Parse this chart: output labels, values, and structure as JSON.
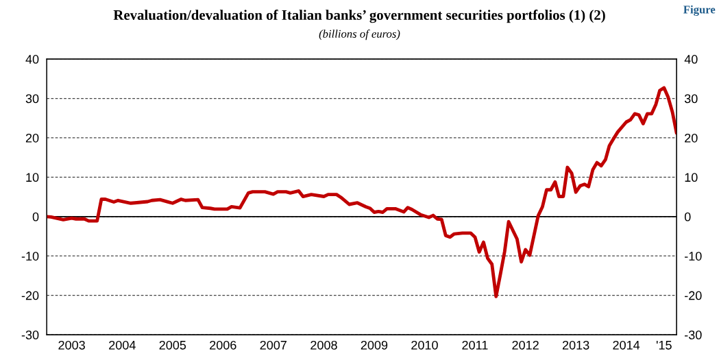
{
  "chart_data": {
    "type": "line",
    "title": "Revaluation/devaluation of Italian banks’ government securities portfolios (1) (2)",
    "subtitle": "(billions of euros)",
    "annotations": [
      "Figure"
    ],
    "x": [
      "2003-01",
      "2003-02",
      "2003-05",
      "2003-07",
      "2003-08",
      "2003-10",
      "2003-11",
      "2004-01",
      "2004-02",
      "2004-03",
      "2004-05",
      "2004-06",
      "2004-09",
      "2004-10",
      "2005-01",
      "2005-02",
      "2005-04",
      "2005-06",
      "2005-07",
      "2005-09",
      "2005-10",
      "2006-01",
      "2006-02",
      "2006-04",
      "2006-05",
      "2006-08",
      "2006-09",
      "2006-11",
      "2007-01",
      "2007-02",
      "2007-05",
      "2007-07",
      "2007-08",
      "2007-10",
      "2007-11",
      "2008-01",
      "2008-02",
      "2008-04",
      "2008-07",
      "2008-08",
      "2008-10",
      "2008-11",
      "2009-01",
      "2009-03",
      "2009-05",
      "2009-06",
      "2009-07",
      "2009-08",
      "2009-09",
      "2009-10",
      "2009-12",
      "2010-02",
      "2010-03",
      "2010-04",
      "2010-06",
      "2010-08",
      "2010-09",
      "2010-10",
      "2010-11",
      "2010-12",
      "2011-01",
      "2011-02",
      "2011-04",
      "2011-06",
      "2011-07",
      "2011-08",
      "2011-09",
      "2011-10",
      "2011-11",
      "2011-12",
      "2012-01",
      "2012-02",
      "2012-03",
      "2012-05",
      "2012-06",
      "2012-07",
      "2012-08",
      "2012-10",
      "2012-11",
      "2012-12",
      "2013-01",
      "2013-02",
      "2013-03",
      "2013-04",
      "2013-05",
      "2013-06",
      "2013-07",
      "2013-08",
      "2013-09",
      "2013-10",
      "2013-11",
      "2013-12",
      "2014-01",
      "2014-02",
      "2014-03",
      "2014-04",
      "2014-05",
      "2014-07",
      "2014-08",
      "2014-09",
      "2014-10",
      "2014-11",
      "2014-12",
      "2015-01",
      "2015-02",
      "2015-03",
      "2015-04",
      "2015-05",
      "2015-06",
      "2015-07"
    ],
    "series": [
      {
        "color": "#c00000",
        "values": [
          0,
          -0.1,
          -0.8,
          -0.4,
          -0.6,
          -0.6,
          -1.1,
          -1.1,
          4.4,
          4.4,
          3.7,
          4.1,
          3.4,
          3.5,
          3.8,
          4.1,
          4.3,
          3.7,
          3.4,
          4.4,
          4.1,
          4.3,
          2.3,
          2.1,
          1.9,
          1.9,
          2.5,
          2.2,
          6.0,
          6.3,
          6.3,
          5.7,
          6.3,
          6.3,
          6.0,
          6.5,
          5.1,
          5.6,
          5.1,
          5.6,
          5.6,
          4.9,
          3.1,
          3.5,
          2.5,
          2.1,
          1.1,
          1.3,
          1.1,
          2.0,
          2.0,
          1.2,
          2.3,
          1.8,
          0.5,
          -0.2,
          0.3,
          -0.6,
          -0.7,
          -4.8,
          -5.2,
          -4.4,
          -4.2,
          -4.2,
          -5.2,
          -9.0,
          -6.5,
          -10.6,
          -12.1,
          -20.3,
          -14.7,
          -8.9,
          -1.3,
          -5.7,
          -11.5,
          -8.4,
          -9.8,
          0.2,
          2.5,
          6.8,
          6.8,
          8.8,
          5.1,
          5.1,
          12.5,
          11.0,
          6.2,
          7.8,
          8.2,
          7.6,
          11.9,
          13.7,
          12.9,
          14.5,
          18.0,
          19.8,
          21.5,
          24.0,
          24.6,
          26.1,
          25.8,
          23.6,
          26.1,
          26.1,
          28.5,
          32.0,
          32.7,
          30.3,
          26.5,
          21.2
        ]
      }
    ],
    "xlim": [
      "2003-01",
      "2015-07"
    ],
    "xticks": [
      {
        "value": "2003-07",
        "label": "2003"
      },
      {
        "value": "2004-07",
        "label": "2004"
      },
      {
        "value": "2005-07",
        "label": "2005"
      },
      {
        "value": "2006-07",
        "label": "2006"
      },
      {
        "value": "2007-07",
        "label": "2007"
      },
      {
        "value": "2008-07",
        "label": "2008"
      },
      {
        "value": "2009-07",
        "label": "2009"
      },
      {
        "value": "2010-07",
        "label": "2010"
      },
      {
        "value": "2011-07",
        "label": "2011"
      },
      {
        "value": "2012-07",
        "label": "2012"
      },
      {
        "value": "2013-07",
        "label": "2013"
      },
      {
        "value": "2014-07",
        "label": "2014"
      },
      {
        "value": "2015-04",
        "label": "'15"
      }
    ],
    "ylim": [
      -30,
      40
    ],
    "yticks": [
      -30,
      -20,
      -10,
      0,
      10,
      20,
      30,
      40
    ],
    "y2lim": [
      -30,
      40
    ],
    "y2ticks": [
      -30,
      -20,
      -10,
      0,
      10,
      20,
      30,
      40
    ],
    "ref_lines": [
      {
        "axis": "y",
        "value": 0,
        "color": "#000000",
        "line_style": "solid"
      }
    ],
    "grid": "y",
    "line_style": "solid",
    "marker": "none"
  }
}
